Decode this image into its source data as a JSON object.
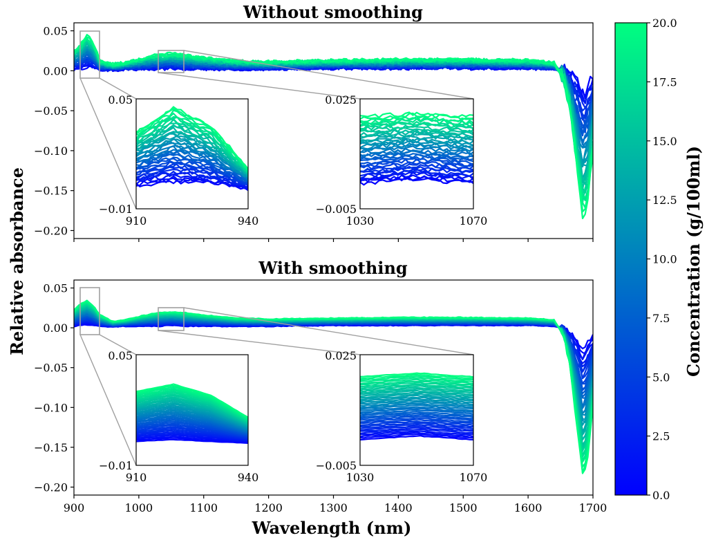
{
  "chart_data": [
    {
      "type": "line",
      "title": "Without smoothing",
      "smoothed": false,
      "xlim": [
        900,
        1700
      ],
      "ylim": [
        -0.21,
        0.06
      ],
      "x_ticks": [
        900,
        1000,
        1100,
        1200,
        1300,
        1400,
        1500,
        1600,
        1700
      ],
      "y_ticks": [
        0.05,
        0.0,
        -0.05,
        -0.1,
        -0.15,
        -0.2
      ],
      "y_tick_labels": [
        "0.05",
        "0.00",
        "−0.05",
        "−0.10",
        "−0.15",
        "−0.20"
      ],
      "series_summary": {
        "count_note": "many spectra colored by concentration",
        "concentration_range": [
          0,
          20
        ],
        "profile_x": [
          900,
          910,
          920,
          930,
          940,
          960,
          980,
          1000,
          1030,
          1050,
          1070,
          1100,
          1150,
          1200,
          1300,
          1400,
          1500,
          1600,
          1640,
          1655,
          1665,
          1675,
          1685,
          1692,
          1700
        ],
        "profile_high_conc_y": [
          0.025,
          0.032,
          0.045,
          0.035,
          0.012,
          0.008,
          0.01,
          0.014,
          0.02,
          0.021,
          0.02,
          0.016,
          0.012,
          0.011,
          0.013,
          0.014,
          0.014,
          0.013,
          0.01,
          -0.01,
          -0.05,
          -0.12,
          -0.185,
          -0.16,
          -0.1
        ],
        "profile_low_conc_y": [
          0.002,
          0.003,
          0.005,
          0.004,
          0.001,
          0.001,
          0.002,
          0.002,
          0.002,
          0.003,
          0.002,
          0.002,
          0.002,
          0.002,
          0.003,
          0.003,
          0.003,
          0.003,
          0.002,
          0.0,
          -0.005,
          -0.015,
          -0.03,
          -0.02,
          -0.01
        ]
      },
      "insets": [
        {
          "xlim": [
            910,
            940
          ],
          "ylim": [
            -0.01,
            0.05
          ],
          "x_tick_labels": [
            "910",
            "940"
          ],
          "y_tick_labels": [
            "0.05",
            "−0.01"
          ]
        },
        {
          "xlim": [
            1030,
            1070
          ],
          "ylim": [
            -0.005,
            0.025
          ],
          "x_tick_labels": [
            "1030",
            "1070"
          ],
          "y_tick_labels": [
            "0.025",
            "−0.005"
          ]
        }
      ]
    },
    {
      "type": "line",
      "title": "With smoothing",
      "smoothed": true,
      "xlim": [
        900,
        1700
      ],
      "ylim": [
        -0.21,
        0.06
      ],
      "x_ticks": [
        900,
        1000,
        1100,
        1200,
        1300,
        1400,
        1500,
        1600,
        1700
      ],
      "x_tick_labels": [
        "900",
        "1000",
        "1100",
        "1200",
        "1300",
        "1400",
        "1500",
        "1600",
        "1700"
      ],
      "y_ticks": [
        0.05,
        0.0,
        -0.05,
        -0.1,
        -0.15,
        -0.2
      ],
      "y_tick_labels": [
        "0.05",
        "0.00",
        "−0.05",
        "−0.10",
        "−0.15",
        "−0.20"
      ],
      "series_summary": {
        "count_note": "many spectra colored by concentration",
        "concentration_range": [
          0,
          20
        ],
        "profile_x": [
          900,
          910,
          920,
          930,
          940,
          960,
          980,
          1000,
          1030,
          1050,
          1070,
          1100,
          1150,
          1200,
          1300,
          1400,
          1500,
          1600,
          1640,
          1655,
          1665,
          1675,
          1685,
          1692,
          1700
        ],
        "profile_high_conc_y": [
          0.022,
          0.03,
          0.034,
          0.028,
          0.016,
          0.008,
          0.01,
          0.014,
          0.019,
          0.02,
          0.019,
          0.016,
          0.012,
          0.011,
          0.012,
          0.013,
          0.013,
          0.012,
          0.01,
          -0.01,
          -0.05,
          -0.12,
          -0.19,
          -0.16,
          -0.1
        ],
        "profile_low_conc_y": [
          0.002,
          0.003,
          0.004,
          0.003,
          0.002,
          0.001,
          0.002,
          0.002,
          0.002,
          0.003,
          0.002,
          0.002,
          0.002,
          0.002,
          0.003,
          0.003,
          0.003,
          0.003,
          0.002,
          0.0,
          -0.005,
          -0.015,
          -0.03,
          -0.02,
          -0.01
        ]
      },
      "insets": [
        {
          "xlim": [
            910,
            940
          ],
          "ylim": [
            -0.01,
            0.05
          ],
          "x_tick_labels": [
            "910",
            "940"
          ],
          "y_tick_labels": [
            "0.05",
            "−0.01"
          ]
        },
        {
          "xlim": [
            1030,
            1070
          ],
          "ylim": [
            -0.005,
            0.025
          ],
          "x_tick_labels": [
            "1030",
            "1070"
          ],
          "y_tick_labels": [
            "0.025",
            "−0.005"
          ]
        }
      ]
    }
  ],
  "xlabel": "Wavelength (nm)",
  "ylabel": "Relative absorbance",
  "colorbar": {
    "label": "Concentration (g/100ml)",
    "range": [
      0,
      20
    ],
    "ticks": [
      0,
      2.5,
      5,
      7.5,
      10,
      12.5,
      15,
      17.5,
      20
    ],
    "tick_labels": [
      "0.0",
      "2.5",
      "5.0",
      "7.5",
      "10.0",
      "12.5",
      "15.0",
      "17.5",
      "20.0"
    ],
    "color_low": "#0000ff",
    "color_high": "#00ff80"
  }
}
